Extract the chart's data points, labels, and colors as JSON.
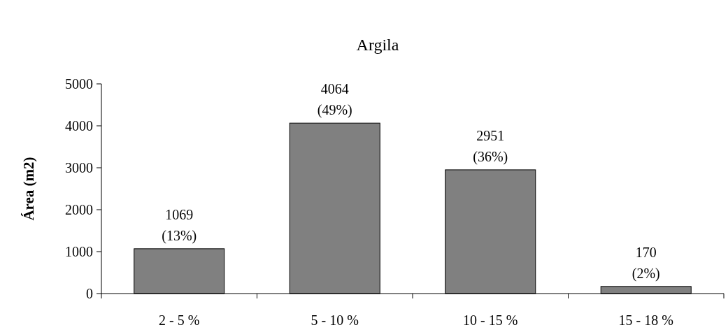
{
  "chart_data": {
    "type": "bar",
    "title": "Argila",
    "ylabel": "Área (m2)",
    "categories": [
      "2 - 5 %",
      "5 - 10 %",
      "10 - 15 %",
      "15 - 18 %"
    ],
    "values": [
      1069,
      4064,
      2951,
      170
    ],
    "value_labels": [
      "1069\n(13%)",
      "4064\n(49%)",
      "2951\n(36%)",
      "170\n(2%)"
    ],
    "color": "#808080",
    "ylim": [
      0,
      5000
    ],
    "yticks": [
      0,
      1000,
      2000,
      3000,
      4000,
      5000
    ]
  }
}
